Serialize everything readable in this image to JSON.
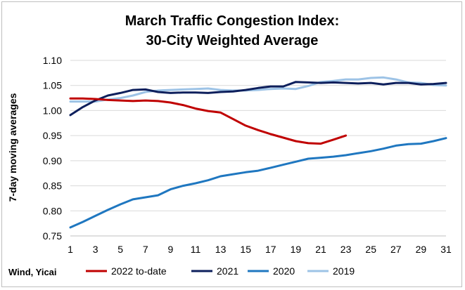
{
  "chart_data": {
    "type": "line",
    "title_line1": "March Traffic Congestion Index:",
    "title_line2": "30-City Weighted Average",
    "xlabel": "",
    "ylabel": "7-day moving averages",
    "source": "Wind, Yicai",
    "xlim": [
      1,
      31
    ],
    "ylim": [
      0.75,
      1.1
    ],
    "x_ticks": [
      1,
      3,
      5,
      7,
      9,
      11,
      13,
      15,
      17,
      19,
      21,
      23,
      25,
      27,
      29,
      31
    ],
    "y_ticks": [
      0.75,
      0.8,
      0.85,
      0.9,
      0.95,
      1.0,
      1.05,
      1.1
    ],
    "y_tick_labels": [
      "0.75",
      "0.80",
      "0.85",
      "0.90",
      "0.95",
      "1.00",
      "1.05",
      "1.10"
    ],
    "legend_position": "bottom",
    "series": [
      {
        "name": "2022 to-date",
        "color": "#c00000",
        "x": [
          1,
          2,
          3,
          4,
          5,
          6,
          7,
          8,
          9,
          10,
          11,
          12,
          13,
          14,
          15,
          16,
          17,
          18,
          19,
          20,
          21,
          22,
          23
        ],
        "values": [
          1.024,
          1.024,
          1.023,
          1.021,
          1.02,
          1.019,
          1.02,
          1.019,
          1.016,
          1.011,
          1.004,
          0.999,
          0.996,
          0.983,
          0.97,
          0.961,
          0.953,
          0.946,
          0.939,
          0.935,
          0.934,
          0.942,
          0.95
        ]
      },
      {
        "name": "2021",
        "color": "#0d1f5c",
        "x": [
          1,
          2,
          3,
          4,
          5,
          6,
          7,
          8,
          9,
          10,
          11,
          12,
          13,
          14,
          15,
          16,
          17,
          18,
          19,
          20,
          21,
          22,
          23,
          24,
          25,
          26,
          27,
          28,
          29,
          30,
          31
        ],
        "values": [
          0.991,
          1.007,
          1.02,
          1.03,
          1.035,
          1.041,
          1.042,
          1.037,
          1.035,
          1.036,
          1.036,
          1.035,
          1.037,
          1.038,
          1.041,
          1.045,
          1.048,
          1.048,
          1.057,
          1.056,
          1.055,
          1.056,
          1.055,
          1.054,
          1.055,
          1.052,
          1.055,
          1.055,
          1.052,
          1.053,
          1.055
        ]
      },
      {
        "name": "2020",
        "color": "#1f77c0",
        "x": [
          1,
          2,
          3,
          4,
          5,
          6,
          7,
          8,
          9,
          10,
          11,
          12,
          13,
          14,
          15,
          16,
          17,
          18,
          19,
          20,
          21,
          22,
          23,
          24,
          25,
          26,
          27,
          28,
          29,
          30,
          31
        ],
        "values": [
          0.767,
          0.778,
          0.79,
          0.802,
          0.813,
          0.823,
          0.827,
          0.831,
          0.843,
          0.85,
          0.855,
          0.861,
          0.869,
          0.873,
          0.877,
          0.88,
          0.886,
          0.892,
          0.898,
          0.904,
          0.906,
          0.908,
          0.911,
          0.915,
          0.919,
          0.924,
          0.93,
          0.933,
          0.934,
          0.939,
          0.945
        ]
      },
      {
        "name": "2019",
        "color": "#9dc3e6",
        "x": [
          1,
          2,
          3,
          4,
          5,
          6,
          7,
          8,
          9,
          10,
          11,
          12,
          13,
          14,
          15,
          16,
          17,
          18,
          19,
          20,
          21,
          22,
          23,
          24,
          25,
          26,
          27,
          28,
          29,
          30,
          31
        ],
        "values": [
          1.018,
          1.018,
          1.018,
          1.022,
          1.025,
          1.03,
          1.037,
          1.04,
          1.041,
          1.042,
          1.043,
          1.044,
          1.041,
          1.04,
          1.04,
          1.041,
          1.043,
          1.044,
          1.043,
          1.049,
          1.057,
          1.059,
          1.062,
          1.062,
          1.065,
          1.066,
          1.062,
          1.056,
          1.055,
          1.051,
          1.05
        ]
      }
    ]
  }
}
